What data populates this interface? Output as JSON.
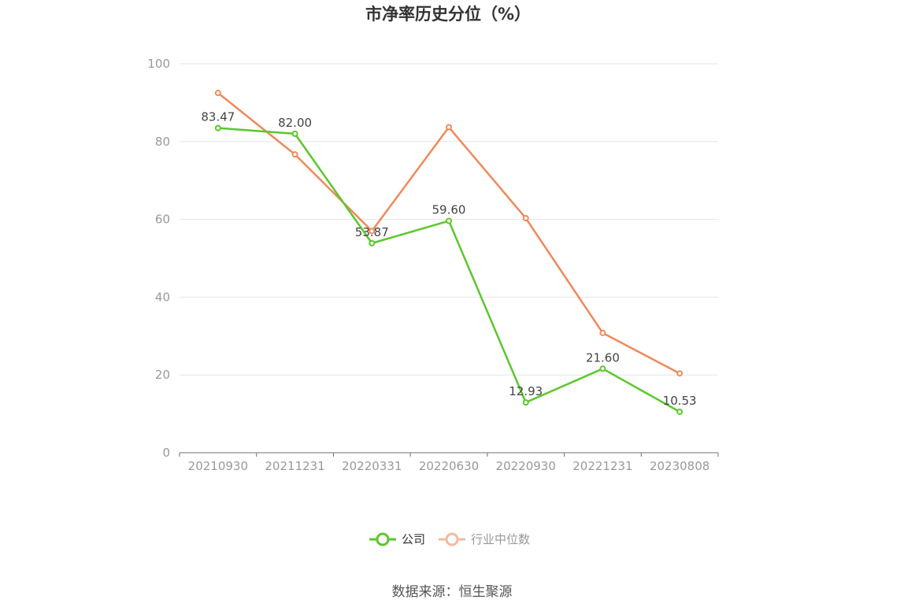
{
  "chart_data": {
    "type": "line",
    "title": "市净率历史分位（%）",
    "categories": [
      "20210930",
      "20211231",
      "20220331",
      "20220630",
      "20220930",
      "20221231",
      "20230808"
    ],
    "ylim": [
      0,
      100
    ],
    "yticks": [
      0,
      20,
      40,
      60,
      80,
      100
    ],
    "grid": true,
    "legend_position": "bottom-center",
    "series": [
      {
        "name": "公司",
        "color": "#5cc72b",
        "values": [
          83.47,
          82.0,
          53.87,
          59.6,
          12.93,
          21.6,
          10.53
        ],
        "labels": [
          "83.47",
          "82.00",
          "53.87",
          "59.60",
          "12.93",
          "21.60",
          "10.53"
        ]
      },
      {
        "name": "行业中位数",
        "color": "#f0895a",
        "legend_color": "#f6b9a0",
        "values": [
          92.5,
          76.7,
          57.0,
          83.7,
          60.3,
          30.8,
          20.4
        ]
      }
    ]
  },
  "source": "数据来源：恒生聚源"
}
